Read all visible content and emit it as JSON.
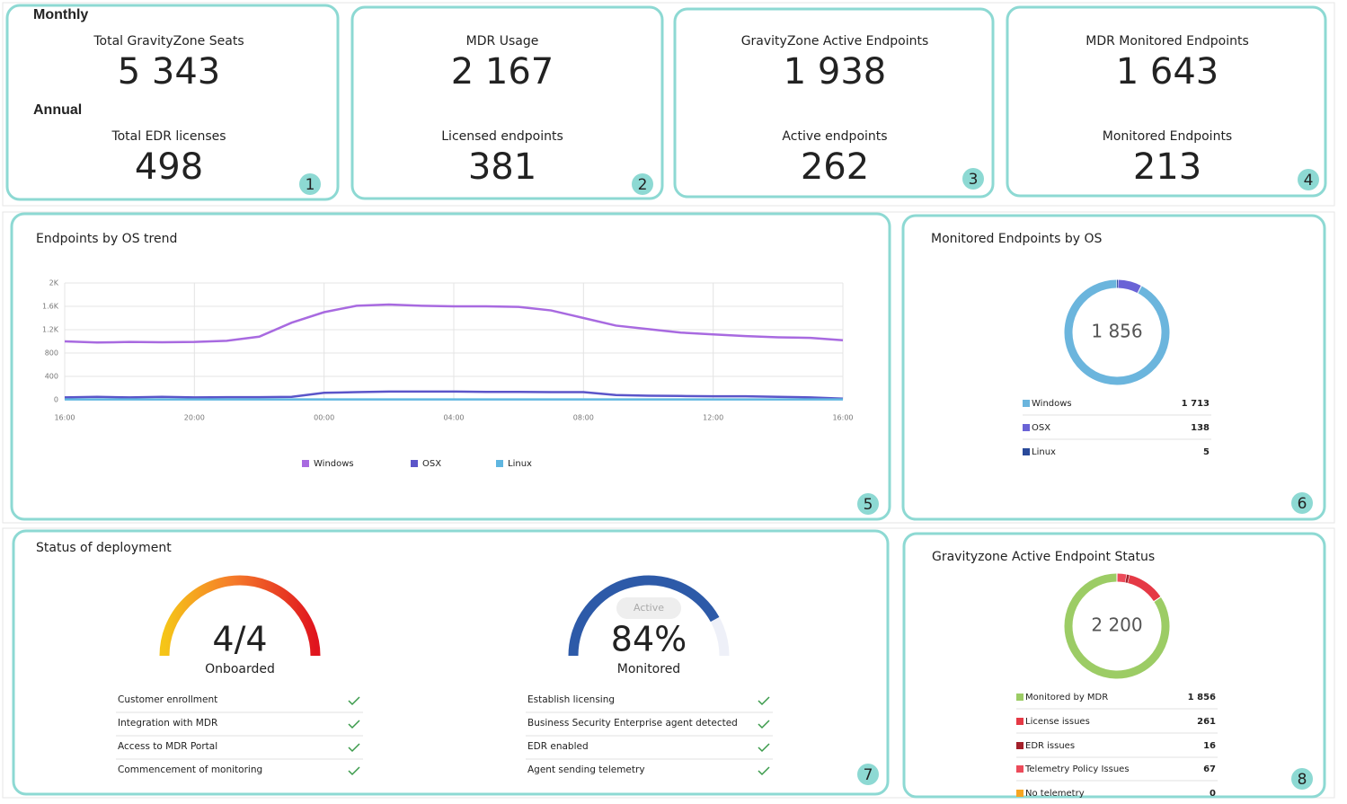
{
  "kpis": [
    {
      "section": "Monthly",
      "top_label": "Total GravityZone Seats",
      "top_value": "5 343",
      "section2": "Annual",
      "bottom_label": "Total EDR licenses",
      "bottom_value": "498",
      "badge": "1"
    },
    {
      "top_label": "MDR Usage",
      "top_value": "2 167",
      "bottom_label": "Licensed endpoints",
      "bottom_value": "381",
      "badge": "2"
    },
    {
      "top_label": "GravityZone Active Endpoints",
      "top_value": "1 938",
      "bottom_label": "Active endpoints",
      "bottom_value": "262",
      "badge": "3"
    },
    {
      "top_label": "MDR Monitored Endpoints",
      "top_value": "1 643",
      "bottom_label": "Monitored Endpoints",
      "bottom_value": "213",
      "badge": "4"
    }
  ],
  "chart_data": [
    {
      "type": "line",
      "title": "Endpoints by OS trend",
      "badge": "5",
      "categories": [
        "16:00",
        null,
        null,
        null,
        "20:00",
        null,
        null,
        null,
        "00:00",
        null,
        null,
        null,
        "04:00",
        null,
        null,
        null,
        "08:00",
        null,
        null,
        null,
        "12:00",
        null,
        null,
        null,
        "16:00"
      ],
      "series": [
        {
          "name": "Windows",
          "color": "#a86ae0",
          "values": [
            1000,
            980,
            990,
            985,
            990,
            1010,
            1080,
            1320,
            1500,
            1610,
            1630,
            1610,
            1600,
            1600,
            1590,
            1530,
            1400,
            1270,
            1210,
            1150,
            1120,
            1090,
            1070,
            1060,
            1020
          ]
        },
        {
          "name": "OSX",
          "color": "#5b55c9",
          "values": [
            40,
            50,
            40,
            50,
            40,
            45,
            45,
            50,
            120,
            130,
            140,
            140,
            140,
            135,
            135,
            130,
            130,
            80,
            70,
            65,
            60,
            60,
            50,
            40,
            20
          ]
        },
        {
          "name": "Linux",
          "color": "#5fb6e0",
          "values": [
            5,
            5,
            5,
            5,
            5,
            5,
            5,
            5,
            5,
            5,
            5,
            5,
            5,
            5,
            5,
            5,
            5,
            5,
            5,
            5,
            5,
            5,
            5,
            5,
            5
          ]
        }
      ],
      "ylim": [
        0,
        2000
      ],
      "yticks": [
        {
          "value": 2000,
          "label": "2K"
        },
        {
          "value": 1600,
          "label": "1.6K"
        },
        {
          "value": 1200,
          "label": "1.2K"
        },
        800,
        400,
        0
      ],
      "grid": true
    },
    {
      "type": "donut",
      "title": "Monitored Endpoints by OS",
      "badge": "6",
      "center_label": "1 856",
      "categories": [
        "Windows",
        "OSX",
        "Linux"
      ],
      "values": [
        1713,
        138,
        5
      ],
      "value_labels": [
        "1 713",
        "138",
        "5"
      ],
      "colors": [
        "#6bb5dd",
        "#6a63d6",
        "#2a4a9a"
      ]
    },
    {
      "type": "donut",
      "title": "Gravityzone Active Endpoint Status",
      "badge": "8",
      "center_label": "2 200",
      "categories": [
        "Monitored by MDR",
        "License issues",
        "EDR issues",
        "Telemetry Policy Issues",
        "No telemetry"
      ],
      "values": [
        1856,
        261,
        16,
        67,
        0
      ],
      "value_labels": [
        "1 856",
        "261",
        "16",
        "67",
        "0"
      ],
      "colors": [
        "#9ccc65",
        "#e53945",
        "#a3202a",
        "#ec4b5a",
        "#f6a623"
      ]
    }
  ],
  "deployment": {
    "title": "Status of deployment",
    "badge": "7",
    "gauges": [
      {
        "value_label": "4/4",
        "caption": "Onboarded",
        "checks": [
          "Customer enrollment",
          "Integration with MDR",
          "Access to MDR Portal",
          "Commencement of monitoring"
        ]
      },
      {
        "pill": "Active",
        "value": 84,
        "value_label": "84%",
        "caption": "Monitored",
        "checks": [
          "Establish licensing",
          "Business Security Enterprise agent detected",
          "EDR enabled",
          "Agent sending telemetry"
        ]
      }
    ]
  }
}
